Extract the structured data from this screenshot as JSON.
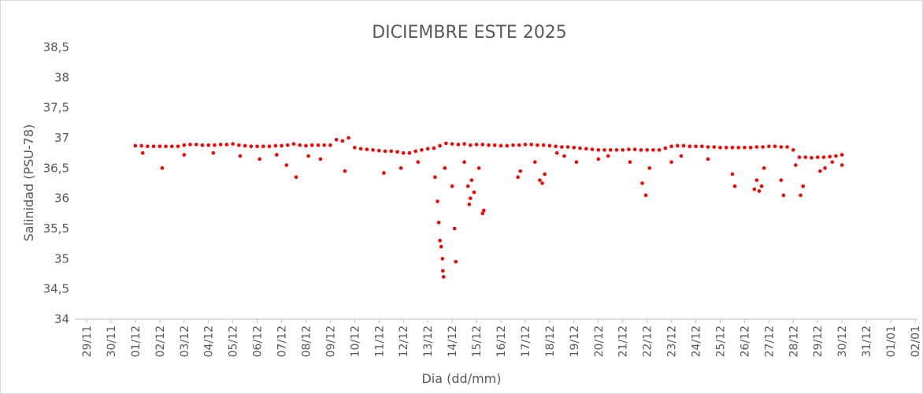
{
  "chart_data": {
    "type": "scatter",
    "title": "DICIEMBRE ESTE 2025",
    "x_label": "Dia (dd/mm)",
    "y_label": "Salinidad (PSU-78)",
    "color": "#ff0000",
    "grid": false,
    "xlim": [
      0,
      34
    ],
    "xticks": [
      {
        "value": 0,
        "label": "29/11"
      },
      {
        "value": 1,
        "label": "30/11"
      },
      {
        "value": 2,
        "label": "01/12"
      },
      {
        "value": 3,
        "label": "02/12"
      },
      {
        "value": 4,
        "label": "03/12"
      },
      {
        "value": 5,
        "label": "04/12"
      },
      {
        "value": 6,
        "label": "05/12"
      },
      {
        "value": 7,
        "label": "06/12"
      },
      {
        "value": 8,
        "label": "07/12"
      },
      {
        "value": 9,
        "label": "08/12"
      },
      {
        "value": 10,
        "label": "09/12"
      },
      {
        "value": 11,
        "label": "10/12"
      },
      {
        "value": 12,
        "label": "11/12"
      },
      {
        "value": 13,
        "label": "12/12"
      },
      {
        "value": 14,
        "label": "13/12"
      },
      {
        "value": 15,
        "label": "14/12"
      },
      {
        "value": 16,
        "label": "15/12"
      },
      {
        "value": 17,
        "label": "16/12"
      },
      {
        "value": 18,
        "label": "17/12"
      },
      {
        "value": 19,
        "label": "18/12"
      },
      {
        "value": 20,
        "label": "19/12"
      },
      {
        "value": 21,
        "label": "20/12"
      },
      {
        "value": 22,
        "label": "21/12"
      },
      {
        "value": 23,
        "label": "22/12"
      },
      {
        "value": 24,
        "label": "23/12"
      },
      {
        "value": 25,
        "label": "24/12"
      },
      {
        "value": 26,
        "label": "25/12"
      },
      {
        "value": 27,
        "label": "26/12"
      },
      {
        "value": 28,
        "label": "27/12"
      },
      {
        "value": 29,
        "label": "28/12"
      },
      {
        "value": 30,
        "label": "29/12"
      },
      {
        "value": 31,
        "label": "30/12"
      },
      {
        "value": 32,
        "label": "31/12"
      },
      {
        "value": 33,
        "label": "01/01"
      },
      {
        "value": 34,
        "label": "02/01"
      }
    ],
    "ylim": [
      34,
      38.5
    ],
    "yticks": [
      34,
      {
        "value": 34.5,
        "label": "34,5"
      },
      35,
      {
        "value": 35.5,
        "label": "35,5"
      },
      36,
      {
        "value": 36.5,
        "label": "36,5"
      },
      37,
      {
        "value": 37.5,
        "label": "37,5"
      },
      38,
      {
        "value": 38.5,
        "label": "38,5"
      }
    ],
    "x": [
      2.0,
      2.25,
      2.5,
      2.75,
      3.0,
      3.25,
      3.5,
      3.75,
      4.0,
      4.25,
      4.5,
      4.75,
      5.0,
      5.25,
      5.5,
      5.75,
      6.0,
      6.25,
      6.5,
      6.75,
      7.0,
      7.25,
      7.5,
      7.75,
      8.0,
      8.25,
      8.5,
      8.75,
      9.0,
      9.25,
      9.5,
      9.75,
      10.0,
      10.25,
      10.5,
      10.75,
      11.0,
      11.25,
      11.5,
      11.75,
      12.0,
      12.25,
      12.5,
      12.75,
      13.0,
      13.25,
      13.5,
      13.75,
      14.0,
      14.25,
      14.5,
      14.75,
      15.0,
      15.25,
      15.5,
      15.75,
      16.0,
      16.25,
      16.5,
      16.75,
      17.0,
      17.25,
      17.5,
      17.75,
      18.0,
      18.25,
      18.5,
      18.75,
      19.0,
      19.25,
      19.5,
      19.75,
      20.0,
      20.25,
      20.5,
      20.75,
      21.0,
      21.25,
      21.5,
      21.75,
      22.0,
      22.25,
      22.5,
      22.75,
      23.0,
      23.25,
      23.5,
      23.75,
      24.0,
      24.25,
      24.5,
      24.75,
      25.0,
      25.25,
      25.5,
      25.75,
      26.0,
      26.25,
      26.5,
      26.75,
      27.0,
      27.25,
      27.5,
      27.75,
      28.0,
      28.25,
      28.5,
      28.75,
      29.0,
      29.25,
      29.5,
      29.75,
      30.0,
      30.25,
      30.5,
      30.75,
      31.0,
      3.1,
      2.3,
      4.0,
      5.2,
      6.3,
      7.1,
      7.8,
      8.2,
      8.6,
      9.1,
      9.6,
      10.6,
      12.2,
      12.9,
      13.6,
      14.3,
      14.4,
      14.45,
      14.5,
      14.55,
      14.6,
      14.62,
      14.65,
      14.7,
      15.0,
      15.1,
      15.15,
      15.5,
      15.65,
      15.7,
      15.75,
      15.8,
      15.9,
      16.25,
      16.3,
      16.1,
      17.7,
      17.8,
      18.4,
      18.6,
      18.7,
      18.8,
      19.3,
      19.6,
      20.1,
      21.0,
      21.4,
      22.3,
      22.8,
      22.95,
      23.1,
      24.0,
      24.4,
      25.5,
      26.5,
      26.6,
      27.4,
      27.5,
      27.6,
      27.7,
      27.8,
      28.5,
      28.6,
      29.1,
      29.3,
      29.4,
      30.1,
      30.3,
      30.6,
      31.0
    ],
    "values": [
      36.87,
      36.87,
      36.86,
      36.86,
      36.86,
      36.86,
      36.86,
      36.86,
      36.88,
      36.89,
      36.89,
      36.88,
      36.88,
      36.88,
      36.89,
      36.89,
      36.9,
      36.88,
      36.87,
      36.86,
      36.86,
      36.86,
      36.86,
      36.87,
      36.87,
      36.88,
      36.9,
      36.88,
      36.87,
      36.88,
      36.88,
      36.88,
      36.88,
      36.97,
      36.95,
      37.0,
      36.84,
      36.82,
      36.81,
      36.8,
      36.79,
      36.78,
      36.78,
      36.77,
      36.75,
      36.75,
      36.78,
      36.8,
      36.82,
      36.83,
      36.87,
      36.91,
      36.9,
      36.89,
      36.9,
      36.88,
      36.89,
      36.89,
      36.88,
      36.88,
      36.87,
      36.87,
      36.88,
      36.88,
      36.89,
      36.89,
      36.88,
      36.88,
      36.87,
      36.86,
      36.85,
      36.85,
      36.84,
      36.83,
      36.82,
      36.81,
      36.8,
      36.8,
      36.8,
      36.8,
      36.8,
      36.81,
      36.81,
      36.8,
      36.8,
      36.8,
      36.8,
      36.83,
      36.86,
      36.87,
      36.87,
      36.86,
      36.86,
      36.86,
      36.85,
      36.85,
      36.84,
      36.84,
      36.84,
      36.84,
      36.84,
      36.84,
      36.85,
      36.85,
      36.86,
      36.86,
      36.85,
      36.85,
      36.8,
      36.68,
      36.68,
      36.67,
      36.68,
      36.68,
      36.69,
      36.7,
      36.72,
      36.5,
      36.75,
      36.72,
      36.75,
      36.7,
      36.65,
      36.72,
      36.55,
      36.35,
      36.7,
      36.65,
      36.45,
      36.42,
      36.5,
      36.6,
      36.35,
      35.95,
      35.6,
      35.3,
      35.2,
      35.0,
      34.8,
      34.7,
      36.5,
      36.2,
      35.5,
      34.95,
      36.6,
      36.2,
      35.9,
      36.0,
      36.3,
      36.1,
      35.75,
      35.8,
      36.5,
      36.35,
      36.45,
      36.6,
      36.3,
      36.25,
      36.4,
      36.75,
      36.7,
      36.6,
      36.65,
      36.7,
      36.6,
      36.25,
      36.05,
      36.5,
      36.6,
      36.7,
      36.65,
      36.4,
      36.2,
      36.15,
      36.3,
      36.12,
      36.2,
      36.5,
      36.3,
      36.05,
      36.55,
      36.05,
      36.2,
      36.45,
      36.5,
      36.6,
      36.55
    ]
  }
}
